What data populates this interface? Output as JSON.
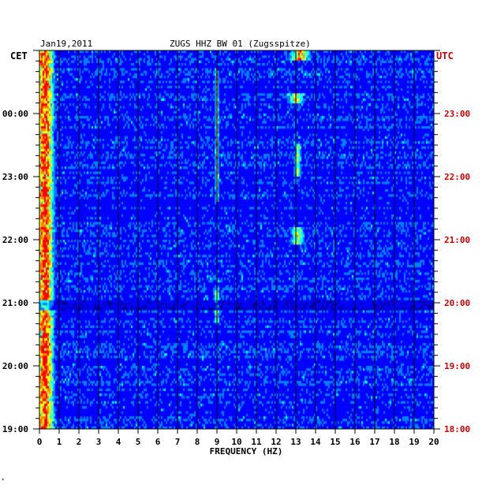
{
  "header": {
    "date": "Jan19,2011",
    "station": "ZUGS HHZ BW 01 (Zugsspitze)"
  },
  "axes": {
    "left_tz": "CET",
    "right_tz": "UTC",
    "xlabel": "FREQUENCY (HZ)"
  },
  "colors": {
    "background_plot": "#0000c8",
    "right_labels": "#d00000",
    "left_labels": "#000000",
    "grid": "#000000"
  },
  "corner_mark": "*",
  "chart_data": {
    "type": "heatmap",
    "title": "ZUGS HHZ BW 01 (Zugsspitze)",
    "xlabel": "FREQUENCY (HZ)",
    "xlim": [
      0,
      20
    ],
    "x_ticks": [
      "0",
      "1",
      "2",
      "3",
      "4",
      "5",
      "6",
      "7",
      "8",
      "9",
      "10",
      "11",
      "12",
      "13",
      "14",
      "15",
      "16",
      "17",
      "18",
      "19",
      "20"
    ],
    "y_left_ticks": [
      "00:00",
      "23:00",
      "22:00",
      "21:00",
      "20:00",
      "19:00"
    ],
    "y_right_ticks": [
      "23:00",
      "22:00",
      "21:00",
      "20:00",
      "19:00",
      "18:00"
    ],
    "y_ticks_hours_from_top": [
      1,
      2,
      3,
      4,
      5,
      6
    ],
    "y_range_hours": [
      0,
      6
    ],
    "colorscale": [
      "#00008c",
      "#0000ff",
      "#0080ff",
      "#00ffff",
      "#80ff80",
      "#ffff00",
      "#ff8000",
      "#ff0000"
    ],
    "features": [
      {
        "freq_hz": 0.3,
        "hours": [
          0,
          6
        ],
        "intensity": 0.9,
        "width_hz": 0.5
      },
      {
        "freq_hz": 13.2,
        "hours": [
          0,
          0.15
        ],
        "intensity": 0.8,
        "width_hz": 0.6
      },
      {
        "freq_hz": 13.0,
        "hours": [
          0.7,
          0.85
        ],
        "intensity": 0.6,
        "width_hz": 0.5
      },
      {
        "freq_hz": 9.0,
        "hours": [
          0.3,
          2.4
        ],
        "intensity": 0.7,
        "width_hz": 0.1
      },
      {
        "freq_hz": 13.1,
        "hours": [
          1.5,
          2.0
        ],
        "intensity": 0.55,
        "width_hz": 0.2
      },
      {
        "freq_hz": 13.1,
        "hours": [
          2.8,
          3.1
        ],
        "intensity": 0.55,
        "width_hz": 0.4
      },
      {
        "freq_hz": 9.0,
        "hours": [
          3.8,
          4.3
        ],
        "intensity": 0.6,
        "width_hz": 0.15
      }
    ],
    "dark_band_hours": [
      3.95,
      4.1
    ]
  }
}
